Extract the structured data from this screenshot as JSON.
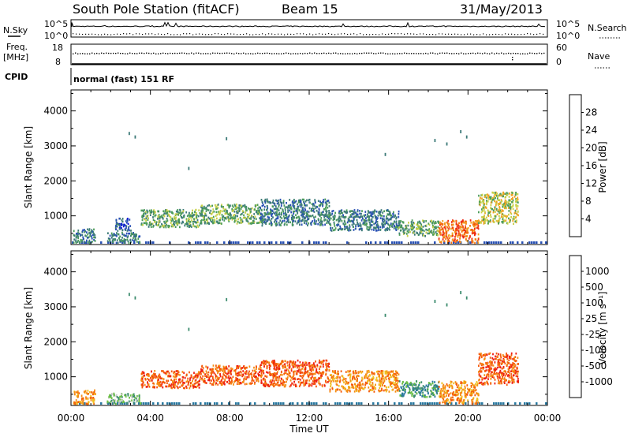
{
  "header": {
    "station": "South Pole Station (fitACF)",
    "beam": "Beam 15",
    "date": "31/May/2013"
  },
  "params": {
    "nsky_label": "N.Sky",
    "nsky_ticks": [
      "10^5",
      "10^0"
    ],
    "nsearch_label": "N.Search",
    "nsearch_ticks": [
      "10^5",
      "10^0"
    ],
    "freq_label": "Freq.",
    "freq_unit": "[MHz]",
    "freq_ticks": [
      "18",
      "8"
    ],
    "nave_label": "Nave",
    "nave_ticks": [
      "60",
      "0"
    ],
    "cpid_label": "CPID",
    "cpid_value": "normal (fast) 151 RF"
  },
  "chart_data": [
    {
      "type": "heatmap",
      "panel": "power",
      "ylabel": "Slant Range [km]",
      "xlabel": "",
      "yticks": [
        "1000",
        "2000",
        "3000",
        "4000"
      ],
      "ylim": [
        180,
        4600
      ],
      "xlim": [
        0,
        24
      ],
      "colorbar_label": "Power [dB]",
      "colorbar_ticks": [
        "4",
        "8",
        "12",
        "16",
        "20",
        "24",
        "28"
      ],
      "colorbar_colors": [
        "#0a14d8",
        "#2850b4",
        "#3c7a78",
        "#4c9c5a",
        "#c8d046",
        "#f0a020",
        "#f57010",
        "#ee2a14"
      ],
      "scatter_regions": [
        {
          "t0": 0.1,
          "t1": 1.2,
          "r0": 250,
          "r1": 650,
          "level": 2
        },
        {
          "t0": 1.8,
          "t1": 3.5,
          "r0": 250,
          "r1": 550,
          "level": 2
        },
        {
          "t0": 2.2,
          "t1": 3.0,
          "r0": 600,
          "r1": 950,
          "level": 1
        },
        {
          "t0": 3.5,
          "t1": 6.5,
          "r0": 700,
          "r1": 1200,
          "level": 3
        },
        {
          "t0": 6.5,
          "t1": 9.5,
          "r0": 800,
          "r1": 1350,
          "level": 3
        },
        {
          "t0": 9.5,
          "t1": 13.0,
          "r0": 750,
          "r1": 1500,
          "level": 2
        },
        {
          "t0": 13.0,
          "t1": 16.5,
          "r0": 600,
          "r1": 1200,
          "level": 2
        },
        {
          "t0": 16.5,
          "t1": 18.5,
          "r0": 450,
          "r1": 900,
          "level": 3
        },
        {
          "t0": 18.5,
          "t1": 20.5,
          "r0": 250,
          "r1": 900,
          "level": 6
        },
        {
          "t0": 20.5,
          "t1": 22.5,
          "r0": 800,
          "r1": 1700,
          "level": 4
        }
      ]
    },
    {
      "type": "heatmap",
      "panel": "velocity",
      "ylabel": "Slant Range [km]",
      "xlabel": "Time UT",
      "yticks": [
        "1000",
        "2000",
        "3000",
        "4000"
      ],
      "xticks": [
        "00:00",
        "04:00",
        "08:00",
        "12:00",
        "16:00",
        "20:00",
        "00:00"
      ],
      "ylim": [
        180,
        4600
      ],
      "xlim": [
        0,
        24
      ],
      "colorbar_label": "Velocity [m s⁻¹]",
      "colorbar_ticks": [
        "1000",
        "500",
        "100",
        "25",
        "-25",
        "-100",
        "-500",
        "-1000"
      ],
      "colorbar_colors": [
        "#1e3cc8",
        "#2878a0",
        "#3c8c6e",
        "#6cc044",
        "#c8c8c8",
        "#f0c020",
        "#f58c14",
        "#f55a0a",
        "#ee1e14"
      ],
      "scatter_regions": [
        {
          "t0": 0.1,
          "t1": 1.2,
          "r0": 250,
          "r1": 650,
          "level": 6
        },
        {
          "t0": 1.8,
          "t1": 3.5,
          "r0": 250,
          "r1": 550,
          "level": 3
        },
        {
          "t0": 3.5,
          "t1": 6.5,
          "r0": 700,
          "r1": 1200,
          "level": 7
        },
        {
          "t0": 6.5,
          "t1": 9.5,
          "r0": 800,
          "r1": 1350,
          "level": 7
        },
        {
          "t0": 9.5,
          "t1": 13.0,
          "r0": 750,
          "r1": 1500,
          "level": 7
        },
        {
          "t0": 13.0,
          "t1": 16.5,
          "r0": 600,
          "r1": 1200,
          "level": 6
        },
        {
          "t0": 16.5,
          "t1": 18.5,
          "r0": 450,
          "r1": 900,
          "level": 2
        },
        {
          "t0": 18.5,
          "t1": 20.5,
          "r0": 250,
          "r1": 900,
          "level": 6
        },
        {
          "t0": 20.5,
          "t1": 22.5,
          "r0": 800,
          "r1": 1700,
          "level": 7
        }
      ]
    }
  ]
}
